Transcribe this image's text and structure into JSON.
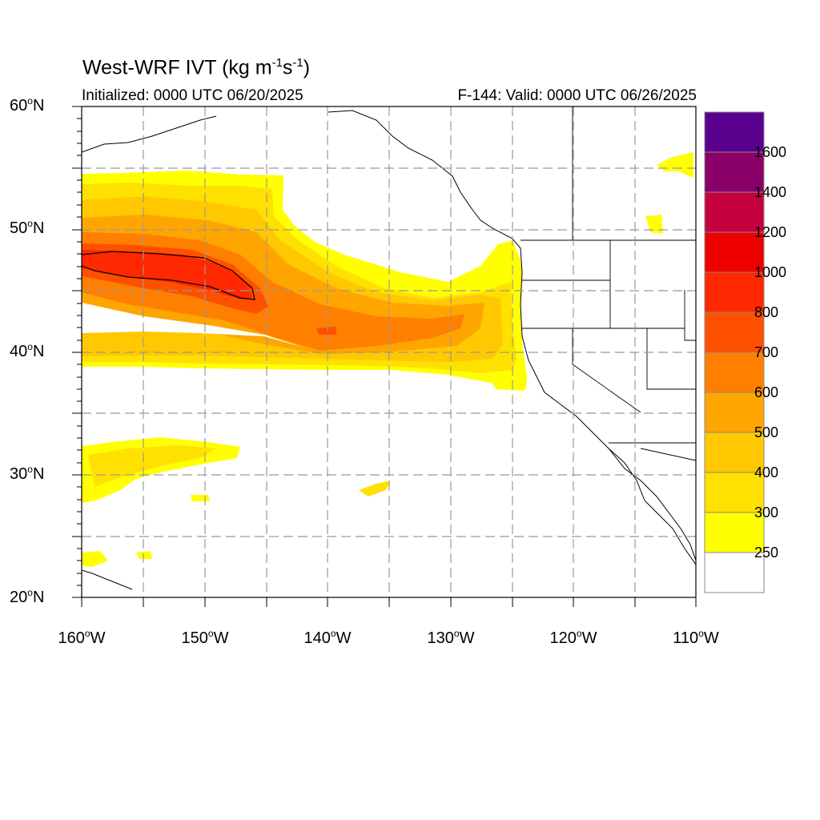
{
  "header": {
    "title": "West-WRF IVT (kg m",
    "title_sup1": "-1",
    "title_mid": "s",
    "title_sup2": "-1",
    "title_end": ")",
    "initialized": "Initialized: 0000 UTC 06/20/2025",
    "valid": "F-144: Valid: 0000 UTC 06/26/2025"
  },
  "axes": {
    "lat_labels": [
      {
        "deg": "60",
        "hem": "N"
      },
      {
        "deg": "50",
        "hem": "N"
      },
      {
        "deg": "40",
        "hem": "N"
      },
      {
        "deg": "30",
        "hem": "N"
      },
      {
        "deg": "20",
        "hem": "N"
      }
    ],
    "lon_labels": [
      {
        "deg": "160",
        "hem": "W"
      },
      {
        "deg": "150",
        "hem": "W"
      },
      {
        "deg": "140",
        "hem": "W"
      },
      {
        "deg": "130",
        "hem": "W"
      },
      {
        "deg": "120",
        "hem": "W"
      },
      {
        "deg": "110",
        "hem": "W"
      }
    ],
    "degree_symbol": "o"
  },
  "colorbar": {
    "labels": [
      "1600",
      "1400",
      "1200",
      "1000",
      "800",
      "700",
      "600",
      "500",
      "400",
      "300",
      "250"
    ],
    "colors": [
      "#ffffff",
      "#ffff00",
      "#ffe100",
      "#ffc800",
      "#ffa500",
      "#ff7f00",
      "#ff5000",
      "#ff2800",
      "#ee0000",
      "#c4003e",
      "#8b0068",
      "#5a008f"
    ]
  },
  "map": {
    "projection": "cylindrical equidistant",
    "lon_range": [
      -160,
      -110
    ],
    "lat_range": [
      20,
      60
    ],
    "grid": "dashed every 5 degrees"
  }
}
